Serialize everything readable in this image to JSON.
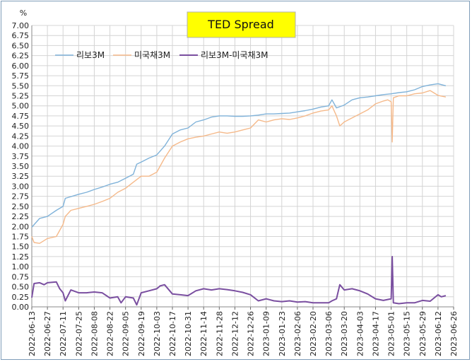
{
  "chart_data": {
    "type": "line",
    "title": "TED Spread",
    "ylabel": "%",
    "ylim": [
      0,
      7
    ],
    "yticks": [
      "0.00",
      "0.25",
      "0.50",
      "0.75",
      "1.00",
      "1.25",
      "1.50",
      "1.75",
      "2.00",
      "2.25",
      "2.50",
      "2.75",
      "3.00",
      "3.25",
      "3.50",
      "3.75",
      "4.00",
      "4.25",
      "4.50",
      "4.75",
      "5.00",
      "5.25",
      "5.50",
      "5.75",
      "6.00",
      "6.25",
      "6.50",
      "6.75",
      "7.00"
    ],
    "xticks": [
      "2022-06-13",
      "2022-06-27",
      "2022-07-11",
      "2022-07-25",
      "2022-08-08",
      "2022-08-22",
      "2022-09-05",
      "2022-09-19",
      "2022-10-03",
      "2022-10-17",
      "2022-10-31",
      "2022-11-14",
      "2022-11-28",
      "2022-12-12",
      "2022-12-26",
      "2023-01-09",
      "2023-01-23",
      "2023-02-06",
      "2023-02-20",
      "2023-03-06",
      "2023-03-20",
      "2023-04-03",
      "2023-04-17",
      "2023-05-01",
      "2023-05-15",
      "2023-05-29",
      "2023-06-12",
      "2023-06-26"
    ],
    "grid": true,
    "legend_position": "top-left",
    "series": [
      {
        "name": "리보3M",
        "color": "#7fb2d9",
        "points": [
          [
            "2022-06-13",
            1.98
          ],
          [
            "2022-06-20",
            2.2
          ],
          [
            "2022-06-27",
            2.25
          ],
          [
            "2022-07-05",
            2.4
          ],
          [
            "2022-07-11",
            2.5
          ],
          [
            "2022-07-13",
            2.7
          ],
          [
            "2022-07-25",
            2.8
          ],
          [
            "2022-08-01",
            2.85
          ],
          [
            "2022-08-08",
            2.92
          ],
          [
            "2022-08-15",
            2.98
          ],
          [
            "2022-08-22",
            3.05
          ],
          [
            "2022-08-29",
            3.1
          ],
          [
            "2022-09-05",
            3.2
          ],
          [
            "2022-09-12",
            3.3
          ],
          [
            "2022-09-15",
            3.55
          ],
          [
            "2022-09-19",
            3.6
          ],
          [
            "2022-09-26",
            3.7
          ],
          [
            "2022-10-03",
            3.78
          ],
          [
            "2022-10-10",
            4.0
          ],
          [
            "2022-10-17",
            4.3
          ],
          [
            "2022-10-24",
            4.4
          ],
          [
            "2022-10-31",
            4.45
          ],
          [
            "2022-11-07",
            4.6
          ],
          [
            "2022-11-14",
            4.65
          ],
          [
            "2022-11-21",
            4.72
          ],
          [
            "2022-11-28",
            4.75
          ],
          [
            "2022-12-05",
            4.75
          ],
          [
            "2022-12-12",
            4.74
          ],
          [
            "2022-12-19",
            4.74
          ],
          [
            "2022-12-26",
            4.75
          ],
          [
            "2023-01-02",
            4.77
          ],
          [
            "2023-01-09",
            4.8
          ],
          [
            "2023-01-16",
            4.8
          ],
          [
            "2023-01-23",
            4.81
          ],
          [
            "2023-01-30",
            4.82
          ],
          [
            "2023-02-06",
            4.85
          ],
          [
            "2023-02-13",
            4.88
          ],
          [
            "2023-02-20",
            4.92
          ],
          [
            "2023-02-27",
            4.97
          ],
          [
            "2023-03-06",
            5.0
          ],
          [
            "2023-03-09",
            5.15
          ],
          [
            "2023-03-13",
            4.95
          ],
          [
            "2023-03-20",
            5.02
          ],
          [
            "2023-03-27",
            5.15
          ],
          [
            "2023-04-03",
            5.2
          ],
          [
            "2023-04-10",
            5.22
          ],
          [
            "2023-04-17",
            5.25
          ],
          [
            "2023-04-24",
            5.28
          ],
          [
            "2023-05-01",
            5.3
          ],
          [
            "2023-05-08",
            5.33
          ],
          [
            "2023-05-15",
            5.35
          ],
          [
            "2023-05-22",
            5.4
          ],
          [
            "2023-05-29",
            5.48
          ],
          [
            "2023-06-05",
            5.52
          ],
          [
            "2023-06-12",
            5.55
          ],
          [
            "2023-06-19",
            5.5
          ]
        ]
      },
      {
        "name": "미국채3M",
        "color": "#f5b98a",
        "points": [
          [
            "2022-06-13",
            1.75
          ],
          [
            "2022-06-15",
            1.6
          ],
          [
            "2022-06-20",
            1.58
          ],
          [
            "2022-06-27",
            1.7
          ],
          [
            "2022-07-05",
            1.75
          ],
          [
            "2022-07-11",
            2.05
          ],
          [
            "2022-07-13",
            2.25
          ],
          [
            "2022-07-18",
            2.4
          ],
          [
            "2022-07-25",
            2.45
          ],
          [
            "2022-08-01",
            2.5
          ],
          [
            "2022-08-08",
            2.55
          ],
          [
            "2022-08-15",
            2.62
          ],
          [
            "2022-08-22",
            2.7
          ],
          [
            "2022-08-29",
            2.85
          ],
          [
            "2022-09-05",
            2.95
          ],
          [
            "2022-09-12",
            3.1
          ],
          [
            "2022-09-19",
            3.25
          ],
          [
            "2022-09-26",
            3.25
          ],
          [
            "2022-10-03",
            3.35
          ],
          [
            "2022-10-10",
            3.7
          ],
          [
            "2022-10-17",
            4.0
          ],
          [
            "2022-10-24",
            4.1
          ],
          [
            "2022-10-31",
            4.18
          ],
          [
            "2022-11-07",
            4.22
          ],
          [
            "2022-11-14",
            4.25
          ],
          [
            "2022-11-21",
            4.3
          ],
          [
            "2022-11-28",
            4.35
          ],
          [
            "2022-12-05",
            4.32
          ],
          [
            "2022-12-12",
            4.35
          ],
          [
            "2022-12-19",
            4.4
          ],
          [
            "2022-12-26",
            4.45
          ],
          [
            "2023-01-02",
            4.65
          ],
          [
            "2023-01-09",
            4.6
          ],
          [
            "2023-01-16",
            4.65
          ],
          [
            "2023-01-23",
            4.68
          ],
          [
            "2023-01-30",
            4.66
          ],
          [
            "2023-02-06",
            4.7
          ],
          [
            "2023-02-13",
            4.75
          ],
          [
            "2023-02-20",
            4.82
          ],
          [
            "2023-02-27",
            4.87
          ],
          [
            "2023-03-06",
            4.9
          ],
          [
            "2023-03-09",
            5.0
          ],
          [
            "2023-03-13",
            4.75
          ],
          [
            "2023-03-16",
            4.5
          ],
          [
            "2023-03-20",
            4.6
          ],
          [
            "2023-03-27",
            4.7
          ],
          [
            "2023-04-03",
            4.8
          ],
          [
            "2023-04-10",
            4.9
          ],
          [
            "2023-04-17",
            5.05
          ],
          [
            "2023-04-24",
            5.12
          ],
          [
            "2023-04-28",
            5.15
          ],
          [
            "2023-05-01",
            5.1
          ],
          [
            "2023-05-02",
            4.1
          ],
          [
            "2023-05-03",
            5.2
          ],
          [
            "2023-05-08",
            5.25
          ],
          [
            "2023-05-15",
            5.25
          ],
          [
            "2023-05-22",
            5.3
          ],
          [
            "2023-05-29",
            5.32
          ],
          [
            "2023-06-05",
            5.38
          ],
          [
            "2023-06-12",
            5.26
          ],
          [
            "2023-06-19",
            5.22
          ]
        ]
      },
      {
        "name": "리보3M-미국채3M",
        "color": "#7a4fa0",
        "points": [
          [
            "2022-06-13",
            0.23
          ],
          [
            "2022-06-15",
            0.58
          ],
          [
            "2022-06-20",
            0.6
          ],
          [
            "2022-06-24",
            0.55
          ],
          [
            "2022-06-27",
            0.6
          ],
          [
            "2022-07-05",
            0.62
          ],
          [
            "2022-07-08",
            0.45
          ],
          [
            "2022-07-11",
            0.35
          ],
          [
            "2022-07-13",
            0.15
          ],
          [
            "2022-07-18",
            0.42
          ],
          [
            "2022-07-25",
            0.35
          ],
          [
            "2022-08-01",
            0.35
          ],
          [
            "2022-08-08",
            0.37
          ],
          [
            "2022-08-15",
            0.35
          ],
          [
            "2022-08-22",
            0.22
          ],
          [
            "2022-08-29",
            0.25
          ],
          [
            "2022-09-01",
            0.1
          ],
          [
            "2022-09-05",
            0.25
          ],
          [
            "2022-09-12",
            0.22
          ],
          [
            "2022-09-15",
            0.05
          ],
          [
            "2022-09-19",
            0.35
          ],
          [
            "2022-09-26",
            0.4
          ],
          [
            "2022-10-03",
            0.45
          ],
          [
            "2022-10-06",
            0.52
          ],
          [
            "2022-10-10",
            0.55
          ],
          [
            "2022-10-17",
            0.32
          ],
          [
            "2022-10-24",
            0.3
          ],
          [
            "2022-10-31",
            0.28
          ],
          [
            "2022-11-07",
            0.4
          ],
          [
            "2022-11-14",
            0.45
          ],
          [
            "2022-11-21",
            0.42
          ],
          [
            "2022-11-28",
            0.45
          ],
          [
            "2022-12-05",
            0.43
          ],
          [
            "2022-12-12",
            0.4
          ],
          [
            "2022-12-19",
            0.36
          ],
          [
            "2022-12-26",
            0.3
          ],
          [
            "2023-01-02",
            0.15
          ],
          [
            "2023-01-09",
            0.2
          ],
          [
            "2023-01-16",
            0.15
          ],
          [
            "2023-01-23",
            0.13
          ],
          [
            "2023-01-30",
            0.15
          ],
          [
            "2023-02-06",
            0.12
          ],
          [
            "2023-02-13",
            0.13
          ],
          [
            "2023-02-20",
            0.1
          ],
          [
            "2023-02-27",
            0.1
          ],
          [
            "2023-03-06",
            0.1
          ],
          [
            "2023-03-09",
            0.15
          ],
          [
            "2023-03-13",
            0.2
          ],
          [
            "2023-03-16",
            0.55
          ],
          [
            "2023-03-20",
            0.42
          ],
          [
            "2023-03-27",
            0.45
          ],
          [
            "2023-04-03",
            0.4
          ],
          [
            "2023-04-10",
            0.32
          ],
          [
            "2023-04-17",
            0.2
          ],
          [
            "2023-04-24",
            0.16
          ],
          [
            "2023-05-01",
            0.2
          ],
          [
            "2023-05-02",
            1.25
          ],
          [
            "2023-05-03",
            0.1
          ],
          [
            "2023-05-08",
            0.08
          ],
          [
            "2023-05-15",
            0.1
          ],
          [
            "2023-05-22",
            0.1
          ],
          [
            "2023-05-29",
            0.16
          ],
          [
            "2023-06-05",
            0.14
          ],
          [
            "2023-06-12",
            0.3
          ],
          [
            "2023-06-15",
            0.25
          ],
          [
            "2023-06-19",
            0.28
          ]
        ]
      }
    ]
  }
}
